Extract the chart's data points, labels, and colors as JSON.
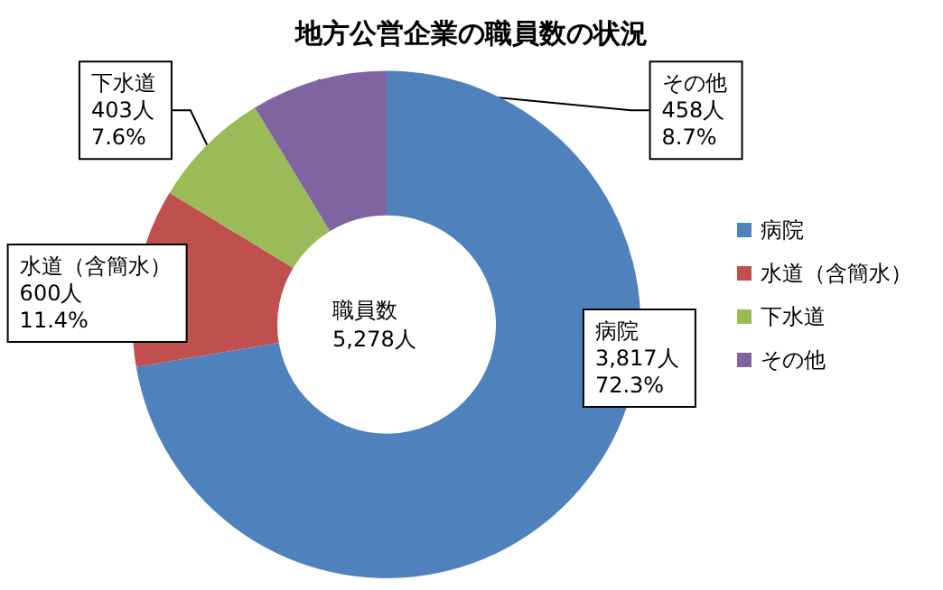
{
  "chart_data": {
    "type": "donut",
    "title": "地方公営企業の職員数の状況",
    "categories": [
      "病院",
      "水道（含簡水）",
      "下水道",
      "その他"
    ],
    "values": [
      3817,
      600,
      403,
      458
    ],
    "colors": [
      "#4f81bd",
      "#c0504d",
      "#9bbb59",
      "#8064a2"
    ],
    "value_labels": [
      "3,817人\n72.3%",
      "600人\n11.4%",
      "403人\n7.6%",
      "458人\n8.7%"
    ],
    "annotations": [
      "職員数\n5,278人"
    ],
    "legend": "right"
  }
}
